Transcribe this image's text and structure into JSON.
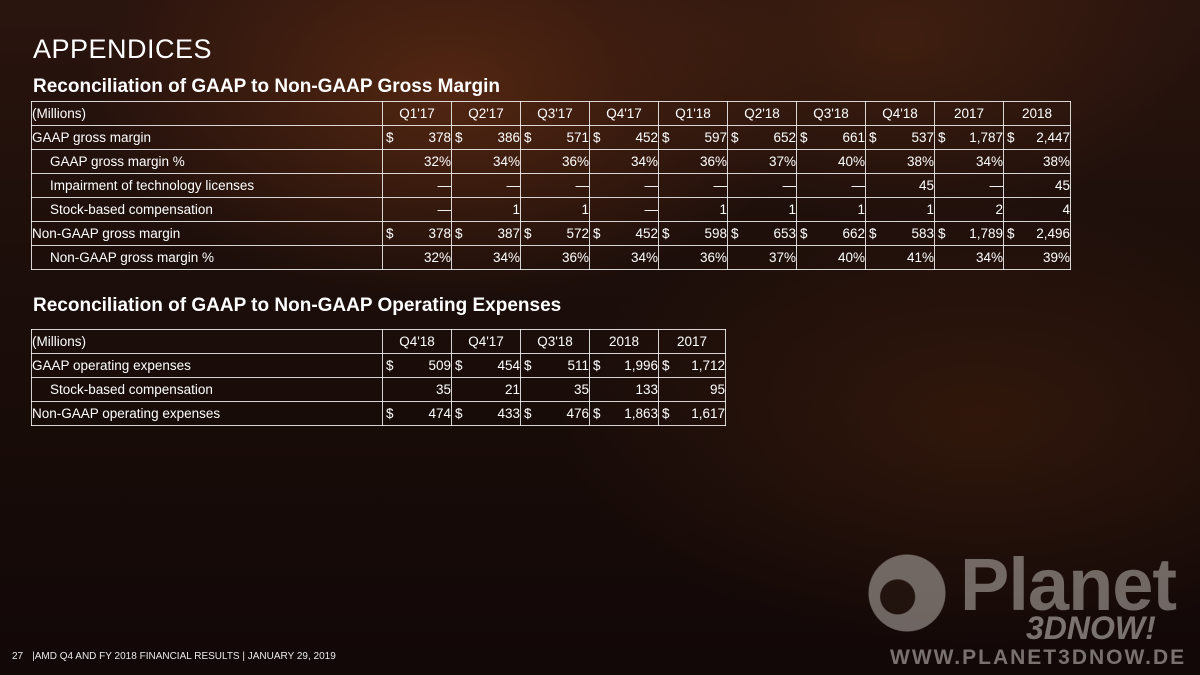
{
  "page": {
    "title": "APPENDICES",
    "footer": {
      "page_number": "27",
      "text": "|AMD Q4 AND FY 2018 FINANCIAL RESULTS |  JANUARY 29, 2019"
    },
    "watermark": {
      "brand": "Planet",
      "sub": "3DNOW!",
      "url": "WWW.PLANET3DNOW.DE"
    }
  },
  "gross_margin": {
    "title": "Reconciliation of GAAP to Non-GAAP Gross Margin",
    "header": [
      "(Millions)",
      "Q1'17",
      "Q2'17",
      "Q3'17",
      "Q4'17",
      "Q1'18",
      "Q2'18",
      "Q3'18",
      "Q4'18",
      "2017",
      "2018"
    ],
    "rows": [
      {
        "label": "GAAP gross margin",
        "indent": false,
        "dollar": true,
        "values": [
          "378",
          "386",
          "571",
          "452",
          "597",
          "652",
          "661",
          "537",
          "1,787",
          "2,447"
        ]
      },
      {
        "label": "GAAP gross margin %",
        "indent": true,
        "dollar": false,
        "pct": true,
        "values": [
          "32%",
          "34%",
          "36%",
          "34%",
          "36%",
          "37%",
          "40%",
          "38%",
          "34%",
          "38%"
        ]
      },
      {
        "label": "Impairment of technology licenses",
        "indent": true,
        "dollar": false,
        "values": [
          "—",
          "—",
          "—",
          "—",
          "—",
          "—",
          "—",
          "45",
          "—",
          "45"
        ]
      },
      {
        "label": "Stock-based compensation",
        "indent": true,
        "dollar": false,
        "values": [
          "—",
          "1",
          "1",
          "—",
          "1",
          "1",
          "1",
          "1",
          "2",
          "4"
        ]
      },
      {
        "label": "Non-GAAP gross margin",
        "indent": false,
        "dollar": true,
        "values": [
          "378",
          "387",
          "572",
          "452",
          "598",
          "653",
          "662",
          "583",
          "1,789",
          "2,496"
        ]
      },
      {
        "label": "Non-GAAP gross margin %",
        "indent": true,
        "dollar": false,
        "pct": true,
        "values": [
          "32%",
          "34%",
          "36%",
          "34%",
          "36%",
          "37%",
          "40%",
          "41%",
          "34%",
          "39%"
        ]
      }
    ]
  },
  "operating_expenses": {
    "title": "Reconciliation of GAAP to Non-GAAP Operating Expenses",
    "header": [
      "(Millions)",
      "Q4'18",
      "Q4'17",
      "Q3'18",
      "2018",
      "2017"
    ],
    "rows": [
      {
        "label": "GAAP operating expenses",
        "indent": false,
        "dollar": true,
        "values": [
          "509",
          "454",
          "511",
          "1,996",
          "1,712"
        ]
      },
      {
        "label": "Stock-based compensation",
        "indent": true,
        "dollar": false,
        "values": [
          "35",
          "21",
          "35",
          "133",
          "95"
        ]
      },
      {
        "label": "Non-GAAP operating expenses",
        "indent": false,
        "dollar": true,
        "values": [
          "474",
          "433",
          "476",
          "1,863",
          "1,617"
        ]
      }
    ]
  },
  "currency_symbol": "$"
}
